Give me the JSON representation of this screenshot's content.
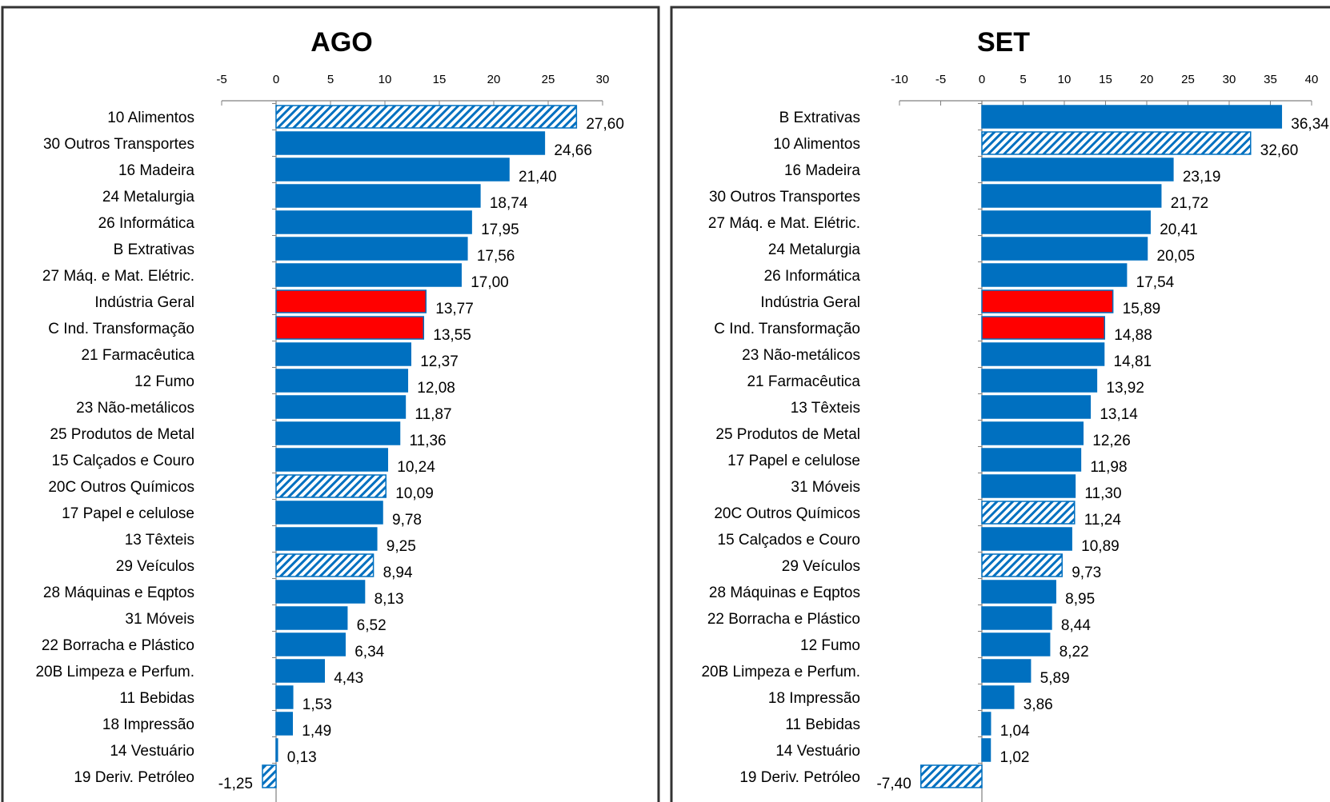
{
  "colors": {
    "bar": "#0070C0",
    "highlight": "#FF0000",
    "hatch_fg": "#0070C0",
    "hatch_bg": "#ffffff",
    "frame": "#333333",
    "axis": "#808080"
  },
  "chart_data": [
    {
      "type": "bar",
      "orientation": "horizontal",
      "title": "AGO",
      "xlim": [
        -5,
        30
      ],
      "xticks": [
        -5,
        0,
        5,
        10,
        15,
        20,
        25,
        30
      ],
      "grid": false,
      "legend": "none",
      "categories": [
        "10  Alimentos",
        "30  Outros Transportes",
        "16  Madeira",
        "24  Metalurgia",
        "26  Informática",
        "B  Extrativas",
        "27  Máq. e Mat. Elétric.",
        "Indústria Geral",
        "C  Ind. Transformação",
        "21  Farmacêutica",
        "12  Fumo",
        "23  Não-metálicos",
        "25  Produtos de Metal",
        "15  Calçados e Couro",
        "20C  Outros Químicos",
        "17  Papel e celulose",
        "13  Têxteis",
        "29  Veículos",
        "28  Máquinas e Eqptos",
        "31  Móveis",
        "22  Borracha e Plástico",
        "20B  Limpeza e Perfum.",
        "11  Bebidas",
        "18  Impressão",
        "14  Vestuário",
        "19  Deriv. Petróleo"
      ],
      "values": [
        27.6,
        24.66,
        21.4,
        18.74,
        17.95,
        17.56,
        17.0,
        13.77,
        13.55,
        12.37,
        12.08,
        11.87,
        11.36,
        10.24,
        10.09,
        9.78,
        9.25,
        8.94,
        8.13,
        6.52,
        6.34,
        4.43,
        1.53,
        1.49,
        0.13,
        -1.25
      ],
      "value_labels": [
        "27,60",
        "24,66",
        "21,40",
        "18,74",
        "17,95",
        "17,56",
        "17,00",
        "13,77",
        "13,55",
        "12,37",
        "12,08",
        "11,87",
        "11,36",
        "10,24",
        "10,09",
        "9,78",
        "9,25",
        "8,94",
        "8,13",
        "6,52",
        "6,34",
        "4,43",
        "1,53",
        "1,49",
        "0,13",
        "-1,25"
      ],
      "styles": [
        "hatched",
        "solid",
        "solid",
        "solid",
        "solid",
        "solid",
        "solid",
        "highlight",
        "highlight",
        "solid",
        "solid",
        "solid",
        "solid",
        "solid",
        "hatched",
        "solid",
        "solid",
        "hatched",
        "solid",
        "solid",
        "solid",
        "solid",
        "solid",
        "solid",
        "solid",
        "hatched"
      ]
    },
    {
      "type": "bar",
      "orientation": "horizontal",
      "title": "SET",
      "xlim": [
        -10,
        40
      ],
      "xticks": [
        -10,
        -5,
        0,
        5,
        10,
        15,
        20,
        25,
        30,
        35,
        40
      ],
      "grid": false,
      "legend": "none",
      "categories": [
        "B  Extrativas",
        "10  Alimentos",
        "16  Madeira",
        "30  Outros Transportes",
        "27  Máq. e Mat. Elétric.",
        "24  Metalurgia",
        "26  Informática",
        "Indústria Geral",
        "C  Ind. Transformação",
        "23  Não-metálicos",
        "21  Farmacêutica",
        "13  Têxteis",
        "25  Produtos de Metal",
        "17  Papel e celulose",
        "31  Móveis",
        "20C  Outros Químicos",
        "15  Calçados e Couro",
        "29  Veículos",
        "28  Máquinas e Eqptos",
        "22  Borracha e Plástico",
        "12  Fumo",
        "20B  Limpeza e Perfum.",
        "18  Impressão",
        "11  Bebidas",
        "14  Vestuário",
        "19  Deriv. Petróleo"
      ],
      "values": [
        36.34,
        32.6,
        23.19,
        21.72,
        20.41,
        20.05,
        17.54,
        15.89,
        14.88,
        14.81,
        13.92,
        13.14,
        12.26,
        11.98,
        11.3,
        11.24,
        10.89,
        9.73,
        8.95,
        8.44,
        8.22,
        5.89,
        3.86,
        1.04,
        1.02,
        -7.4
      ],
      "value_labels": [
        "36,34",
        "32,60",
        "23,19",
        "21,72",
        "20,41",
        "20,05",
        "17,54",
        "15,89",
        "14,88",
        "14,81",
        "13,92",
        "13,14",
        "12,26",
        "11,98",
        "11,30",
        "11,24",
        "10,89",
        "9,73",
        "8,95",
        "8,44",
        "8,22",
        "5,89",
        "3,86",
        "1,04",
        "1,02",
        "-7,40"
      ],
      "styles": [
        "solid",
        "hatched",
        "solid",
        "solid",
        "solid",
        "solid",
        "solid",
        "highlight",
        "highlight",
        "solid",
        "solid",
        "solid",
        "solid",
        "solid",
        "solid",
        "hatched",
        "solid",
        "hatched",
        "solid",
        "solid",
        "solid",
        "solid",
        "solid",
        "solid",
        "solid",
        "hatched"
      ]
    }
  ]
}
